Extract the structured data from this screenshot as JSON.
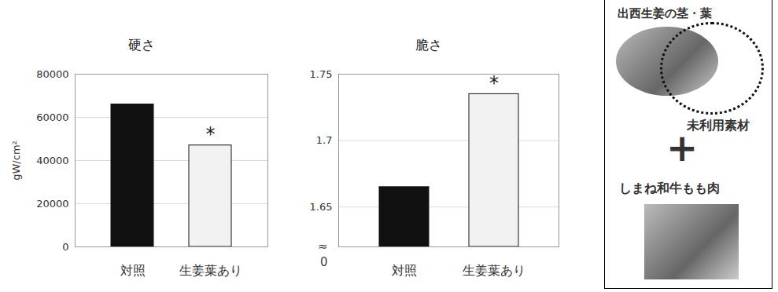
{
  "chart_data": [
    {
      "type": "bar",
      "title": "硬さ",
      "y_label": "gW/cm²",
      "categories": [
        "対照",
        "生姜葉あり"
      ],
      "values": [
        66000,
        47000
      ],
      "colors": [
        "#111111",
        "#f2f2f2"
      ],
      "ylim": [
        0,
        80000
      ],
      "yticks": [
        0,
        20000,
        40000,
        60000,
        80000
      ],
      "grid": true,
      "annotations": [
        {
          "category": "生姜葉あり",
          "text": "*"
        }
      ]
    },
    {
      "type": "bar",
      "title": "脆さ",
      "categories": [
        "対照",
        "生姜葉あり"
      ],
      "values": [
        1.665,
        1.735
      ],
      "colors": [
        "#111111",
        "#f2f2f2"
      ],
      "ylim": [
        1.62,
        1.75
      ],
      "yticks": [
        1.65,
        1.7,
        1.75
      ],
      "grid": true,
      "axis_break_labels": [
        "≈",
        "0"
      ],
      "annotations": [
        {
          "category": "生姜葉あり",
          "text": "*"
        }
      ]
    }
  ],
  "panel": {
    "top_label": "出西生姜の茎・葉",
    "side_label": "未利用素材",
    "plus": "+",
    "bottom_label": "しまね和牛もも肉"
  }
}
